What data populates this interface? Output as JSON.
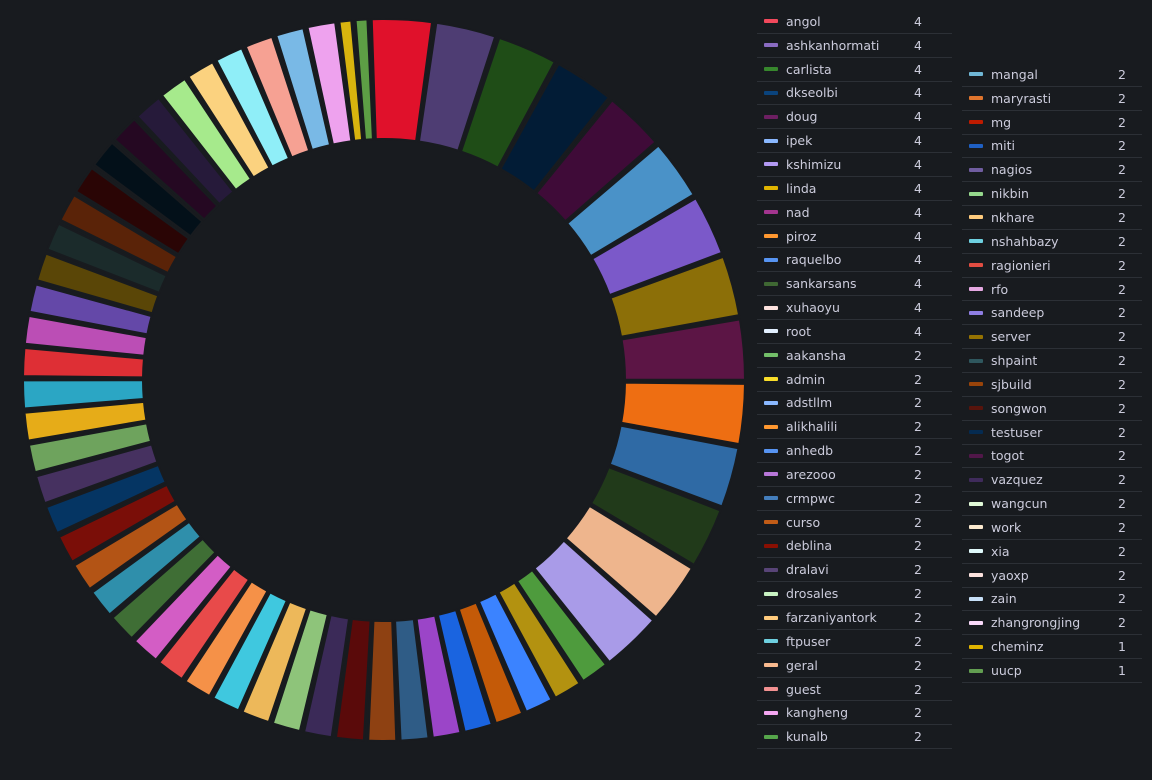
{
  "chart_data": {
    "type": "pie",
    "subtype": "donut",
    "legend_placement": "right",
    "series": [
      {
        "name": "angol",
        "value": 4,
        "color": "#f2495c"
      },
      {
        "name": "ashkanhormati",
        "value": 4,
        "color": "#8a6cc2"
      },
      {
        "name": "carlista",
        "value": 4,
        "color": "#37872d"
      },
      {
        "name": "dkseolbi",
        "value": 4,
        "color": "#0a437c"
      },
      {
        "name": "doug",
        "value": 4,
        "color": "#6d1f62"
      },
      {
        "name": "ipek",
        "value": 4,
        "color": "#8ab8ff"
      },
      {
        "name": "kshimizu",
        "value": 4,
        "color": "#b299f2"
      },
      {
        "name": "linda",
        "value": 4,
        "color": "#e0b400"
      },
      {
        "name": "nad",
        "value": 4,
        "color": "#a3358f"
      },
      {
        "name": "piroz",
        "value": 4,
        "color": "#ff9830"
      },
      {
        "name": "raquelbo",
        "value": 4,
        "color": "#5794f2"
      },
      {
        "name": "sankarsans",
        "value": 4,
        "color": "#3f6833"
      },
      {
        "name": "xuhaoyu",
        "value": 4,
        "color": "#fce2de"
      },
      {
        "name": "root",
        "value": 4,
        "color": "#e3f0ff"
      },
      {
        "name": "aakansha",
        "value": 2,
        "color": "#73bf69"
      },
      {
        "name": "admin",
        "value": 2,
        "color": "#fade2a"
      },
      {
        "name": "adstllm",
        "value": 2,
        "color": "#8ab8ff"
      },
      {
        "name": "alikhalili",
        "value": 2,
        "color": "#ff9830"
      },
      {
        "name": "anhedb",
        "value": 2,
        "color": "#5794f2"
      },
      {
        "name": "arezooo",
        "value": 2,
        "color": "#b877d9"
      },
      {
        "name": "crmpwc",
        "value": 2,
        "color": "#447ebc"
      },
      {
        "name": "curso",
        "value": 2,
        "color": "#c15c17"
      },
      {
        "name": "deblina",
        "value": 2,
        "color": "#890f02"
      },
      {
        "name": "dralavi",
        "value": 2,
        "color": "#584477"
      },
      {
        "name": "drosales",
        "value": 2,
        "color": "#c8f2c2"
      },
      {
        "name": "farzaniyantork",
        "value": 2,
        "color": "#ffcb7d"
      },
      {
        "name": "ftpuser",
        "value": 2,
        "color": "#6ed0e0"
      },
      {
        "name": "geral",
        "value": 2,
        "color": "#f9ba8f"
      },
      {
        "name": "guest",
        "value": 2,
        "color": "#f29191"
      },
      {
        "name": "kangheng",
        "value": 2,
        "color": "#f4a6f1"
      },
      {
        "name": "kunalb",
        "value": 2,
        "color": "#56a64b"
      },
      {
        "name": "mangal",
        "value": 2,
        "color": "#70b7d6"
      },
      {
        "name": "maryrasti",
        "value": 2,
        "color": "#e0752d"
      },
      {
        "name": "mg",
        "value": 2,
        "color": "#bf1b00"
      },
      {
        "name": "miti",
        "value": 2,
        "color": "#1f60c4"
      },
      {
        "name": "nagios",
        "value": 2,
        "color": "#705da0"
      },
      {
        "name": "nikbin",
        "value": 2,
        "color": "#96d98d"
      },
      {
        "name": "nkhare",
        "value": 2,
        "color": "#ffcb7d"
      },
      {
        "name": "nshahbazy",
        "value": 2,
        "color": "#6ed0e0"
      },
      {
        "name": "ragionieri",
        "value": 2,
        "color": "#e24d42"
      },
      {
        "name": "rfo",
        "value": 2,
        "color": "#e5a8e2"
      },
      {
        "name": "sandeep",
        "value": 2,
        "color": "#8f7ee3"
      },
      {
        "name": "server",
        "value": 2,
        "color": "#967302"
      },
      {
        "name": "shpaint",
        "value": 2,
        "color": "#2f575e"
      },
      {
        "name": "sjbuild",
        "value": 2,
        "color": "#99440a"
      },
      {
        "name": "songwon",
        "value": 2,
        "color": "#58140c"
      },
      {
        "name": "testuser",
        "value": 2,
        "color": "#052b51"
      },
      {
        "name": "togot",
        "value": 2,
        "color": "#511749"
      },
      {
        "name": "vazquez",
        "value": 2,
        "color": "#3f2b5b"
      },
      {
        "name": "wangcun",
        "value": 2,
        "color": "#e0f9d7"
      },
      {
        "name": "work",
        "value": 2,
        "color": "#fceacf"
      },
      {
        "name": "xia",
        "value": 2,
        "color": "#e0f9fb"
      },
      {
        "name": "yaoxp",
        "value": 2,
        "color": "#fce2de"
      },
      {
        "name": "zain",
        "value": 2,
        "color": "#c7e0f8"
      },
      {
        "name": "zhangrongjing",
        "value": 2,
        "color": "#f9d9f9"
      },
      {
        "name": "cheminz",
        "value": 1,
        "color": "#e0b400"
      },
      {
        "name": "uucp",
        "value": 1,
        "color": "#629e51"
      }
    ],
    "slice_order": [
      {
        "color": "#e0112b"
      },
      {
        "color": "#4e3d73"
      },
      {
        "color": "#1f4d17"
      },
      {
        "color": "#021c36"
      },
      {
        "color": "#3f0b38"
      },
      {
        "color": "#4a92c8"
      },
      {
        "color": "#7b59c9"
      },
      {
        "color": "#8c6f08"
      },
      {
        "color": "#5c1545"
      },
      {
        "color": "#ee6e12"
      },
      {
        "color": "#2f6aa5"
      },
      {
        "color": "#213a1a"
      },
      {
        "color": "#eeb58d"
      },
      {
        "color": "#a99be8"
      },
      {
        "color": "#4e9b3d"
      },
      {
        "color": "#b39210"
      },
      {
        "color": "#3b83ff"
      },
      {
        "color": "#c45a08"
      },
      {
        "color": "#1a64e0"
      },
      {
        "color": "#9b45c8"
      },
      {
        "color": "#2f5c86"
      },
      {
        "color": "#8e4112"
      },
      {
        "color": "#5a0a0a"
      },
      {
        "color": "#3b2a58"
      },
      {
        "color": "#8ec47a"
      },
      {
        "color": "#edb85a"
      },
      {
        "color": "#3fc8df"
      },
      {
        "color": "#f59148"
      },
      {
        "color": "#e84a4a"
      },
      {
        "color": "#d35dc5"
      },
      {
        "color": "#3f6e35"
      },
      {
        "color": "#2f8fab"
      },
      {
        "color": "#b35415"
      },
      {
        "color": "#7a0e08"
      },
      {
        "color": "#053563"
      },
      {
        "color": "#463160"
      },
      {
        "color": "#6ea35d"
      },
      {
        "color": "#e6ac18"
      },
      {
        "color": "#2ba6c4"
      },
      {
        "color": "#de2f35"
      },
      {
        "color": "#bb4eb5"
      },
      {
        "color": "#6448a8"
      },
      {
        "color": "#5a4607"
      },
      {
        "color": "#1b2b2b"
      },
      {
        "color": "#5a2308"
      },
      {
        "color": "#2a0505"
      },
      {
        "color": "#031019"
      },
      {
        "color": "#250822"
      },
      {
        "color": "#261a3a"
      },
      {
        "color": "#a6ea8c"
      },
      {
        "color": "#fbd27f"
      },
      {
        "color": "#8feef8"
      },
      {
        "color": "#f6a193"
      },
      {
        "color": "#79b9e6"
      },
      {
        "color": "#eea2ee"
      },
      {
        "color": "#d8b40e"
      },
      {
        "color": "#5d9e45"
      }
    ]
  }
}
